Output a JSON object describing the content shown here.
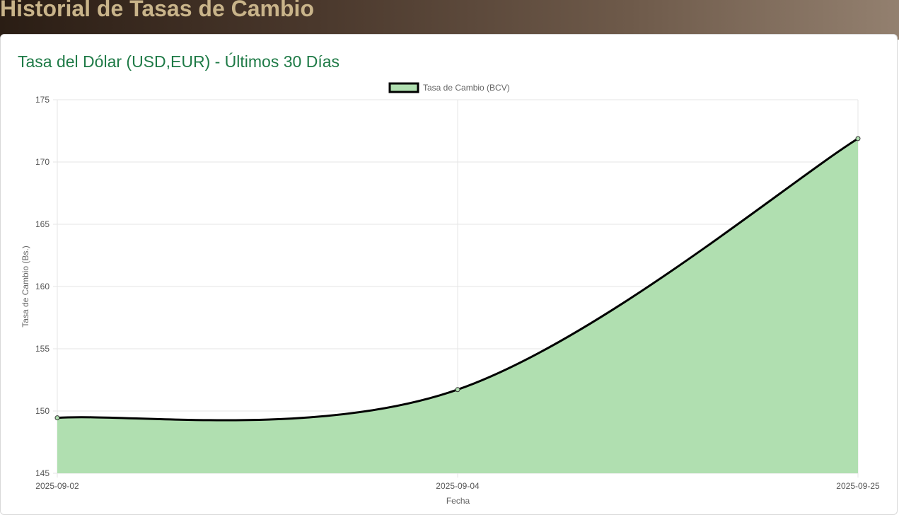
{
  "header": {
    "title": "Historial de Tasas de Cambio"
  },
  "card": {
    "title": "Tasa del Dólar (USD,EUR) - Últimos 30 Días"
  },
  "chart_data": {
    "type": "area",
    "x": [
      "2025-09-02",
      "2025-09-04",
      "2025-09-25"
    ],
    "series": [
      {
        "name": "Tasa de Cambio (BCV)",
        "values": [
          149.45,
          151.72,
          171.88
        ],
        "line_color": "#000000",
        "fill_color": "#b0dfb0"
      }
    ],
    "xlabel": "Fecha",
    "ylabel": "Tasa de Cambio (Bs.)",
    "ylim": [
      145,
      175
    ],
    "yticks": [
      145,
      150,
      155,
      160,
      165,
      170,
      175
    ],
    "grid": true,
    "legend": "top-center"
  }
}
